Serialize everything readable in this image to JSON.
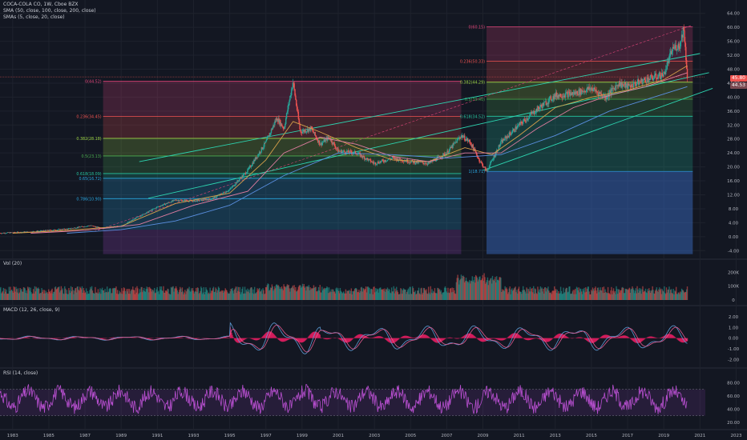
{
  "header": {
    "title": "COCA-COLA CO, 1W, Cboe BZX",
    "sma1": "SMA (50, close, 100, close, 200, close)",
    "sma2": "SMAs (5, close, 20, close)"
  },
  "panes": {
    "vol_label": "Vol (20)",
    "macd_label": "MACD (12, 26, close, 9)",
    "rsi_label": "RSI (14, close)"
  },
  "price_tags": {
    "last": "45.80",
    "ma": "44.53"
  },
  "colors": {
    "background": "#131722",
    "candle_up": "#26a69a",
    "candle_down": "#ef5350",
    "fib_0": "#e1457a",
    "fib_236": "#ef5350",
    "fib_382": "#9bd344",
    "fib_5": "#4caf50",
    "fib_618": "#26c6a0",
    "fib_786": "#29a7e0",
    "channel": "#2dd4b0",
    "macd_line": "#5b9bd5",
    "signal_line": "#e05a8f",
    "rsi_line": "#b84fd0"
  },
  "chart_data": [
    {
      "type": "line",
      "title": "COCA-COLA CO, 1W, Cboe BZX",
      "x_axis_labels": [
        "1983",
        "1985",
        "1987",
        "1989",
        "1991",
        "1993",
        "1995",
        "1997",
        "1999",
        "2001",
        "2003",
        "2005",
        "2007",
        "2009",
        "2011",
        "2013",
        "2015",
        "2017",
        "2019",
        "2021",
        "2023"
      ],
      "y_axis_labels": [
        "-4.00",
        "0.00",
        "4.00",
        "8.00",
        "12.00",
        "16.00",
        "20.00",
        "24.00",
        "28.00",
        "32.00",
        "36.00",
        "40.00",
        "44.00",
        "48.00",
        "52.00",
        "56.00",
        "60.00",
        "64.00"
      ],
      "ylim": [
        -6,
        66
      ],
      "xlim": [
        1982.3,
        2023.6
      ],
      "series": [
        {
          "x": [
            1982.3,
            1984,
            1986,
            1987.3,
            1987.9,
            1989,
            1990,
            1991,
            1992,
            1993,
            1994,
            1995,
            1996,
            1997,
            1997.6,
            1998.0,
            1998.5,
            1998.9,
            1999.5,
            2000.0,
            2000.5,
            2001.0,
            2002.0,
            2003.0,
            2004.0,
            2005.0,
            2006.0,
            2007.0,
            2007.8,
            2008.3,
            2008.8,
            2009.2,
            2010.0,
            2011.0,
            2012.0,
            2013.0,
            2014.0,
            2015.0,
            2015.8,
            2016.5,
            2017.0,
            2018.0,
            2019.0,
            2019.5,
            2019.9,
            2020.1,
            2020.3
          ],
          "values": [
            1.0,
            1.4,
            2.2,
            3.2,
            2.4,
            3.0,
            5.8,
            8.5,
            10.5,
            10.2,
            10.8,
            13.5,
            19.0,
            27.0,
            34.0,
            31.0,
            44.5,
            30.0,
            31.0,
            26.5,
            28.5,
            24.5,
            24.0,
            21.0,
            22.5,
            21.5,
            21.0,
            24.0,
            29.0,
            27.0,
            22.0,
            18.7,
            27.0,
            32.0,
            36.5,
            40.5,
            41.0,
            42.5,
            40.0,
            44.0,
            43.0,
            45.0,
            46.5,
            54.0,
            55.0,
            60.1,
            46.0
          ]
        },
        {
          "name": "SMA 50",
          "x": [
            1983,
            1986,
            1989,
            1992,
            1995,
            1997,
            1998.5,
            2000,
            2002,
            2004,
            2006,
            2008,
            2009.5,
            2011,
            2013,
            2015,
            2017,
            2019,
            2020.3
          ],
          "values": [
            1.0,
            1.8,
            3.0,
            9.5,
            12.5,
            22.0,
            33.0,
            30.0,
            25.5,
            22.0,
            21.5,
            25.5,
            23.5,
            29.0,
            37.0,
            40.0,
            42.0,
            45.0,
            49.0
          ]
        },
        {
          "name": "SMA 100",
          "x": [
            1984,
            1987,
            1990,
            1993,
            1996,
            1998,
            2000,
            2002,
            2004,
            2006,
            2008,
            2010,
            2012,
            2014,
            2016,
            2018,
            2020.3
          ],
          "values": [
            1.0,
            1.8,
            3.5,
            9.0,
            13.0,
            24.0,
            28.5,
            26.5,
            23.0,
            21.5,
            24.0,
            24.0,
            31.0,
            37.0,
            40.5,
            43.0,
            47.0
          ]
        },
        {
          "name": "SMA 200",
          "x": [
            1986,
            1989,
            1992,
            1995,
            1998,
            2001,
            2004,
            2007,
            2010,
            2013,
            2016,
            2020.3
          ],
          "values": [
            1.0,
            2.0,
            4.5,
            9.0,
            17.5,
            24.0,
            23.5,
            22.5,
            23.5,
            29.0,
            36.0,
            43.0
          ]
        }
      ],
      "fibonacci": [
        {
          "levels": [
            {
              "label": "0(44.52)",
              "value": 44.52
            },
            {
              "label": "0.236(34.45)",
              "value": 34.45
            },
            {
              "label": "0.382(28.18)",
              "value": 28.18
            },
            {
              "label": "0.5(23.13)",
              "value": 23.13
            },
            {
              "label": "0.618(18.09)",
              "value": 18.09
            },
            {
              "label": "0.65(16.72)",
              "value": 16.72
            },
            {
              "label": "0.786(10.90)",
              "value": 10.9
            }
          ]
        },
        {
          "levels": [
            {
              "label": "0(60.15)",
              "value": 60.15
            },
            {
              "label": "0.236(50.33)",
              "value": 50.33
            },
            {
              "label": "0.382(44.29)",
              "value": 44.29
            },
            {
              "label": "0.5(39.40)",
              "value": 39.4
            },
            {
              "label": "0.618(34.52)",
              "value": 34.52
            },
            {
              "label": "1(18.71)",
              "value": 18.71
            }
          ]
        }
      ]
    },
    {
      "type": "bar",
      "title": "Vol (20)",
      "y_axis_labels": [
        "200K",
        "100K",
        "0"
      ],
      "ylim": [
        0,
        260000
      ]
    },
    {
      "type": "line",
      "title": "MACD (12, 26, close, 9)",
      "y_axis_labels": [
        "2.00",
        "1.00",
        "0.00",
        "-1.00",
        "-2.00"
      ],
      "ylim": [
        -2.5,
        2.6
      ]
    },
    {
      "type": "line",
      "title": "RSI (14, close)",
      "y_axis_labels": [
        "80.00",
        "60.00",
        "40.00",
        "20.00"
      ],
      "ylim": [
        15,
        95
      ],
      "bands": [
        70,
        30
      ]
    }
  ]
}
